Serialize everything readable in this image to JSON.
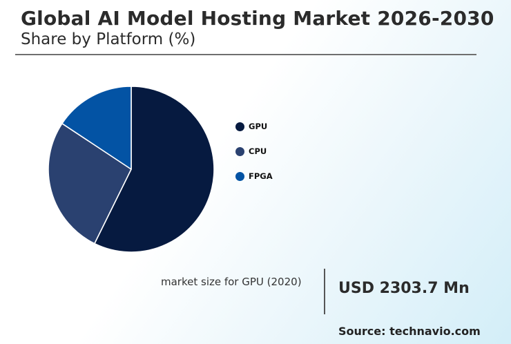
{
  "header": {
    "title": "Global AI Model Hosting Market 2026-2030",
    "subtitle": "Share by Platform (%)"
  },
  "chart_data": {
    "type": "pie",
    "title": "Global AI Model Hosting Market 2026-2030",
    "subtitle": "Share by Platform (%)",
    "categories": [
      "GPU",
      "CPU",
      "FPGA"
    ],
    "values": [
      57.3,
      27.0,
      15.7
    ],
    "colors": [
      "#061a40",
      "#2a4170",
      "#0353a4"
    ],
    "start_angle_deg": 0,
    "direction": "clockwise",
    "legend_position": "right"
  },
  "stat": {
    "label": "market size for GPU (2020)",
    "value": "USD 2303.7 Mn"
  },
  "footer": {
    "source": "Source: technavio.com"
  }
}
